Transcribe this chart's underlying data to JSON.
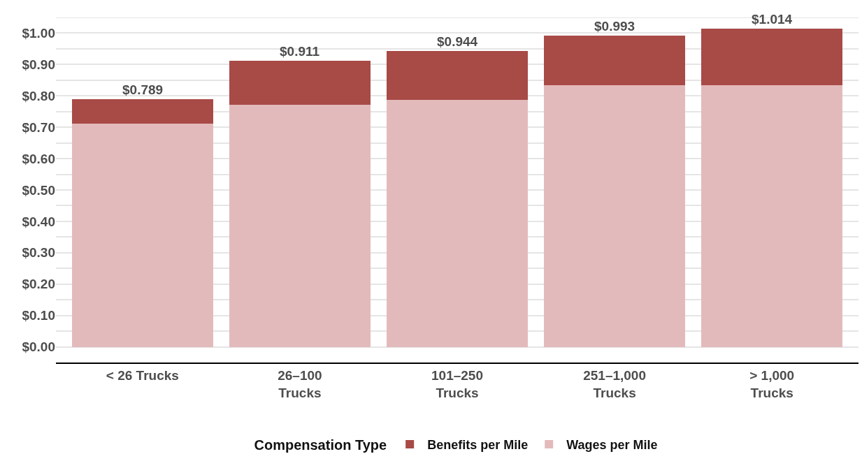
{
  "chart_data": {
    "type": "bar",
    "stacked": true,
    "categories": [
      "< 26 Trucks",
      "26–100\nTrucks",
      "101–250\nTrucks",
      "251–1,000\nTrucks",
      "> 1,000\nTrucks"
    ],
    "series": [
      {
        "name": "Wages per Mile",
        "color": "#e3babb",
        "values": [
          0.712,
          0.772,
          0.787,
          0.834,
          0.834
        ]
      },
      {
        "name": "Benefits per Mile",
        "color": "#a84a46",
        "values": [
          0.077,
          0.139,
          0.157,
          0.159,
          0.18
        ]
      }
    ],
    "totals": [
      "$0.789",
      "$0.911",
      "$0.944",
      "$0.993",
      "$1.014"
    ],
    "legend_title": "Compensation Type",
    "legend": "bottom",
    "grid": "y",
    "ylim": [
      -0.05,
      1.05
    ],
    "yticks": [
      {
        "value": 0,
        "label": "$0.00"
      },
      {
        "value": 0.05,
        "label": null
      },
      {
        "value": 0.1,
        "label": "$0.10"
      },
      {
        "value": 0.15,
        "label": null
      },
      {
        "value": 0.2,
        "label": "$0.20"
      },
      {
        "value": 0.25,
        "label": null
      },
      {
        "value": 0.3,
        "label": "$0.30"
      },
      {
        "value": 0.35,
        "label": null
      },
      {
        "value": 0.4,
        "label": "$0.40"
      },
      {
        "value": 0.45,
        "label": null
      },
      {
        "value": 0.5,
        "label": "$0.50"
      },
      {
        "value": 0.55,
        "label": null
      },
      {
        "value": 0.6,
        "label": "$0.60"
      },
      {
        "value": 0.65,
        "label": null
      },
      {
        "value": 0.7,
        "label": "$0.70"
      },
      {
        "value": 0.75,
        "label": null
      },
      {
        "value": 0.8,
        "label": "$0.80"
      },
      {
        "value": 0.85,
        "label": null
      },
      {
        "value": 0.9,
        "label": "$0.90"
      },
      {
        "value": 0.95,
        "label": null
      },
      {
        "value": 1.0,
        "label": "$1.00"
      },
      {
        "value": 1.05,
        "label": null
      }
    ]
  }
}
